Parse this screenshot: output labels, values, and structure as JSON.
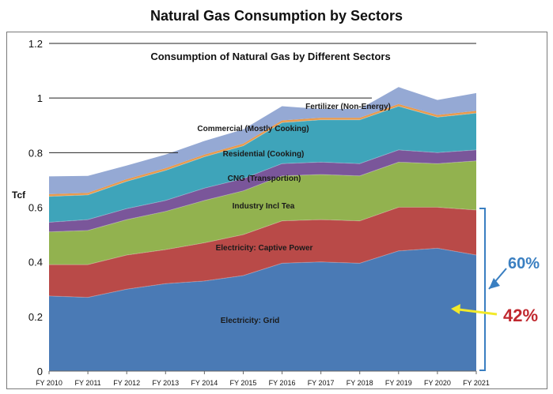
{
  "title": "Natural Gas Consumption by Sectors",
  "chart_data": {
    "type": "area",
    "stacked": true,
    "title": "Consumption of Natural Gas by Different Sectors",
    "ylabel": "Tcf",
    "xlabel": "",
    "ylim": [
      0,
      1.2
    ],
    "yticks": [
      "0",
      "0.2",
      "0.4",
      "0.6",
      "0.8",
      "1",
      "1.2"
    ],
    "categories": [
      "FY 2010",
      "FY 2011",
      "FY 2012",
      "FY 2013",
      "FY 2014",
      "FY 2015",
      "FY 2016",
      "FY 2017",
      "FY 2018",
      "FY 2019",
      "FY 2020",
      "FY 2021"
    ],
    "series": [
      {
        "name": "Electricity: Grid",
        "color": "#4a7ab5",
        "values": [
          0.275,
          0.27,
          0.3,
          0.32,
          0.33,
          0.35,
          0.395,
          0.4,
          0.395,
          0.44,
          0.45,
          0.425
        ]
      },
      {
        "name": "Electricity: Captive Power",
        "color": "#b94a48",
        "values": [
          0.115,
          0.12,
          0.125,
          0.125,
          0.14,
          0.15,
          0.155,
          0.155,
          0.155,
          0.16,
          0.15,
          0.165
        ]
      },
      {
        "name": "Industry Incl Tea",
        "color": "#92b24f",
        "values": [
          0.12,
          0.125,
          0.13,
          0.14,
          0.155,
          0.16,
          0.165,
          0.165,
          0.165,
          0.165,
          0.16,
          0.18
        ]
      },
      {
        "name": "CNG (Transportion)",
        "color": "#7a569a",
        "values": [
          0.035,
          0.04,
          0.04,
          0.04,
          0.045,
          0.045,
          0.045,
          0.045,
          0.045,
          0.045,
          0.04,
          0.04
        ]
      },
      {
        "name": "Residential (Cooking)",
        "color": "#3ea4ba",
        "values": [
          0.095,
          0.09,
          0.1,
          0.11,
          0.115,
          0.12,
          0.15,
          0.155,
          0.16,
          0.16,
          0.13,
          0.135
        ]
      },
      {
        "name": "Commercial (Mostly Cooking)",
        "color": "#e99a4c",
        "values": [
          0.008,
          0.008,
          0.008,
          0.008,
          0.008,
          0.008,
          0.008,
          0.008,
          0.008,
          0.008,
          0.008,
          0.008
        ]
      },
      {
        "name": "Fertilizer (Non-Energy)",
        "color": "#95a9d4",
        "values": [
          0.065,
          0.062,
          0.05,
          0.05,
          0.05,
          0.052,
          0.052,
          0.032,
          0.032,
          0.062,
          0.055,
          0.065
        ]
      }
    ],
    "annotations": [
      {
        "text": "60%",
        "color": "#3a7fc1"
      },
      {
        "text": "42%",
        "color": "#c0282f"
      }
    ],
    "legend": "inline labels",
    "grid": "partial horizontal lines"
  }
}
